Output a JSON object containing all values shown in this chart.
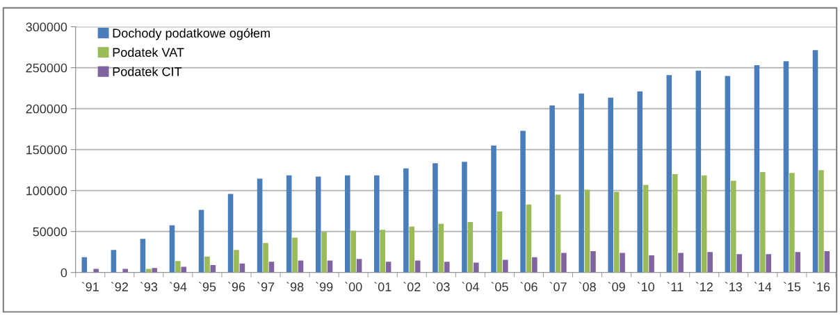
{
  "chart_data": {
    "type": "bar",
    "categories": [
      "`91",
      "`92",
      "`93",
      "`94",
      "`95",
      "`96",
      "`97",
      "`98",
      "`99",
      "`00",
      "`01",
      "`02",
      "`03",
      "`04",
      "`05",
      "`06",
      "`07",
      "`08",
      "`09",
      "`10",
      "`11",
      "`12",
      "`13",
      "`14",
      "`15",
      "`16"
    ],
    "series": [
      {
        "name": "Dochody podatkowe ogółem",
        "color": "#4a7ebb",
        "values": [
          18500,
          27500,
          41000,
          57500,
          76500,
          96000,
          114500,
          118500,
          117000,
          118500,
          118500,
          127000,
          133500,
          135000,
          155000,
          173000,
          204000,
          218500,
          213500,
          221000,
          241000,
          246500,
          240000,
          253000,
          258000,
          271500
        ]
      },
      {
        "name": "Podatek VAT",
        "color": "#9bbb59",
        "values": [
          null,
          null,
          4500,
          14000,
          19500,
          27500,
          36000,
          42500,
          49500,
          51000,
          52000,
          56000,
          59500,
          61500,
          74500,
          83000,
          95000,
          101000,
          98500,
          107000,
          120000,
          118500,
          112000,
          122500,
          121500,
          125000
        ]
      },
      {
        "name": "Podatek CIT",
        "color": "#8064a2",
        "values": [
          4500,
          4500,
          5500,
          7000,
          9000,
          11000,
          13000,
          14500,
          14500,
          16500,
          13000,
          14500,
          13000,
          12000,
          15500,
          18500,
          24000,
          26000,
          24000,
          21000,
          24000,
          25000,
          22500,
          22500,
          25000,
          26000
        ]
      }
    ],
    "ylim": [
      0,
      300000
    ],
    "yticks": [
      0,
      50000,
      100000,
      150000,
      200000,
      250000,
      300000
    ],
    "grid": "y",
    "legend": "top left"
  }
}
